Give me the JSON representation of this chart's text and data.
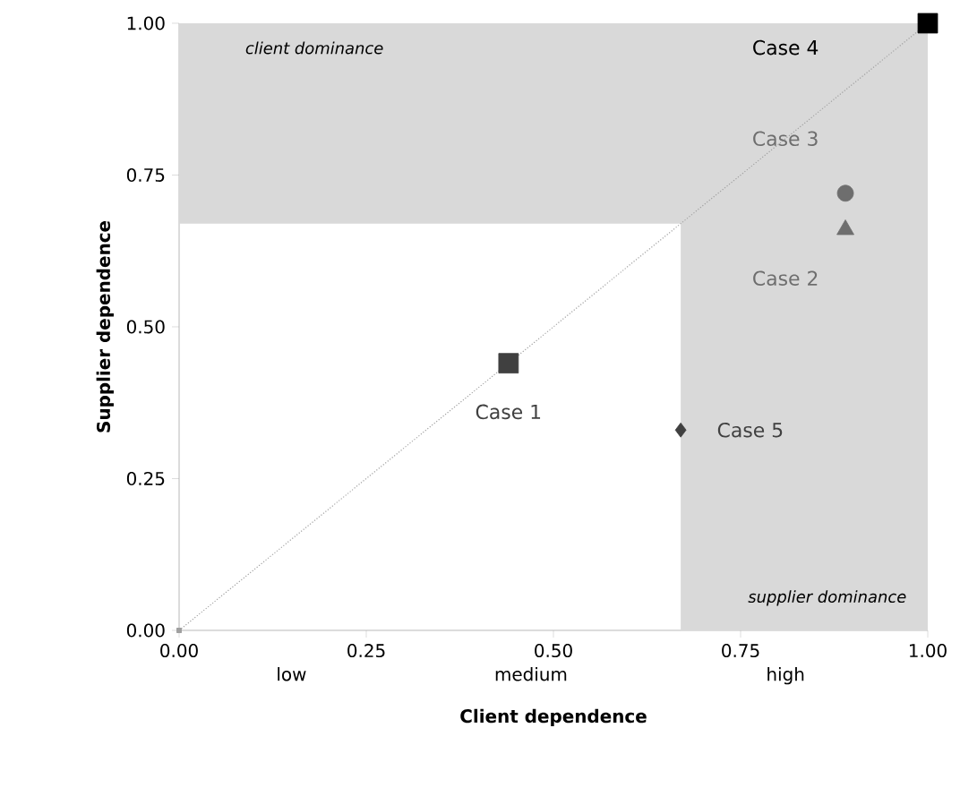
{
  "chart_data": {
    "type": "scatter",
    "xlabel": "Client dependence",
    "ylabel": "Supplier dependence",
    "xlim": [
      0,
      1
    ],
    "ylim": [
      0,
      1
    ],
    "xticks": [
      {
        "value": 0,
        "label": "0.00"
      },
      {
        "value": 0.25,
        "label": "0.25"
      },
      {
        "value": 0.5,
        "label": "0.50"
      },
      {
        "value": 0.75,
        "label": "0.75"
      },
      {
        "value": 1,
        "label": "1.00"
      }
    ],
    "yticks": [
      {
        "value": 0,
        "label": "0.00"
      },
      {
        "value": 0.25,
        "label": "0.25"
      },
      {
        "value": 0.5,
        "label": "0.50"
      },
      {
        "value": 0.75,
        "label": "0.75"
      },
      {
        "value": 1,
        "label": "1.00"
      }
    ],
    "grid": false,
    "bands": [
      {
        "axis": "y",
        "from": 0.67,
        "to": 1,
        "label": "client dominance",
        "color": "#d9d9d9"
      },
      {
        "axis": "x",
        "from": 0.67,
        "to": 1,
        "label": "supplier dominance",
        "color": "#d9d9d9"
      }
    ],
    "series": [
      {
        "type": "line",
        "x": [
          0,
          1
        ],
        "values": [
          0,
          1
        ],
        "color": "#a0a0a0",
        "line_style": "dotted",
        "marker": "square"
      },
      {
        "name": "Case 1",
        "x": [
          0.44
        ],
        "values": [
          0.44
        ],
        "color": "#404040",
        "marker": "square"
      },
      {
        "name": "Case 2",
        "x": [
          0.89
        ],
        "values": [
          0.66
        ],
        "color": "#6e6e6e",
        "marker": "triangle"
      },
      {
        "name": "Case 3",
        "x": [
          0.89
        ],
        "values": [
          0.72
        ],
        "color": "#6e6e6e",
        "marker": "circle"
      },
      {
        "name": "Case 4",
        "x": [
          1
        ],
        "values": [
          1
        ],
        "color": "#000000",
        "marker": "square"
      },
      {
        "name": "Case 5",
        "x": [
          0.67
        ],
        "values": [
          0.33
        ],
        "color": "#404040",
        "marker": "diamond"
      }
    ],
    "annotations": [
      "low",
      "medium",
      "high"
    ]
  }
}
